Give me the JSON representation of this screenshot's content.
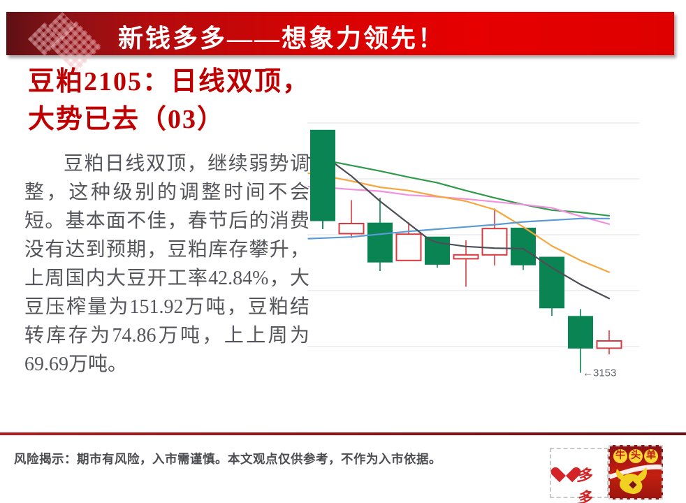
{
  "banner": {
    "title": "新钱多多——想象力领先！"
  },
  "title": {
    "line1": "豆粕2105：日线双顶，",
    "line2": "大势已去（03）"
  },
  "body": {
    "paragraph": "豆粕日线双顶，继续弱势调整，这种级别的调整时间不会短。基本面不佳，春节后的消费没有达到预期，豆粕库存攀升，上周国内大豆开工率42.84%，大豆压榨量为151.92万吨，豆粕结转库存为74.86万吨，上上周为69.69万吨。"
  },
  "footer": {
    "disclaimer": "风险揭示：期市有风险，入市需谨慎。本文观点仅供参考，不作为入市依据。"
  },
  "logos": {
    "qianduoduo": {
      "heart_char": "钱",
      "suffix": "多多"
    },
    "niutoudan": {
      "chars": [
        "牛",
        "头",
        "单"
      ]
    }
  },
  "chart_data": {
    "type": "candlestick",
    "title": "",
    "ylim": [
      3100,
      3650
    ],
    "grid": true,
    "gridline_prices": [
      3600,
      3500,
      3400,
      3300,
      3200
    ],
    "colors": {
      "up": "#d93a3f",
      "down": "#0b8453",
      "grid": "#e7e8ec"
    },
    "candles": [
      {
        "open": 3587,
        "high": 3587,
        "low": 3410,
        "close": 3425,
        "dir": "down"
      },
      {
        "open": 3402,
        "high": 3462,
        "low": 3394,
        "close": 3420,
        "dir": "up"
      },
      {
        "open": 3421,
        "high": 3466,
        "low": 3335,
        "close": 3351,
        "dir": "down"
      },
      {
        "open": 3354,
        "high": 3422,
        "low": 3354,
        "close": 3401,
        "dir": "up"
      },
      {
        "open": 3396,
        "high": 3396,
        "low": 3341,
        "close": 3347,
        "dir": "down"
      },
      {
        "open": 3357,
        "high": 3390,
        "low": 3307,
        "close": 3364,
        "dir": "up"
      },
      {
        "open": 3364,
        "high": 3447,
        "low": 3345,
        "close": 3411,
        "dir": "up"
      },
      {
        "open": 3412,
        "high": 3412,
        "low": 3337,
        "close": 3346,
        "dir": "down"
      },
      {
        "open": 3360,
        "high": 3360,
        "low": 3255,
        "close": 3269,
        "dir": "down"
      },
      {
        "open": 3254,
        "high": 3267,
        "low": 3153,
        "close": 3197,
        "dir": "down"
      },
      {
        "open": 3197,
        "high": 3229,
        "low": 3186,
        "close": 3210,
        "dir": "up"
      }
    ],
    "series": [
      {
        "name": "green",
        "color": "#2f9a4b",
        "points": [
          [
            -0.5,
            3538
          ],
          [
            0,
            3534
          ],
          [
            1,
            3524
          ],
          [
            2,
            3514
          ],
          [
            3,
            3503
          ],
          [
            4,
            3493
          ],
          [
            5,
            3479
          ],
          [
            6,
            3466
          ],
          [
            7,
            3454
          ],
          [
            8,
            3444
          ],
          [
            9,
            3440
          ],
          [
            10,
            3434
          ]
        ]
      },
      {
        "name": "pink",
        "color": "#f290dd",
        "points": [
          [
            -0.5,
            3486
          ],
          [
            0,
            3485
          ],
          [
            1,
            3481
          ],
          [
            2,
            3478
          ],
          [
            3,
            3471
          ],
          [
            4,
            3468
          ],
          [
            5,
            3464
          ],
          [
            6,
            3459
          ],
          [
            7,
            3454
          ],
          [
            8,
            3448
          ],
          [
            9,
            3433
          ],
          [
            10,
            3419
          ]
        ]
      },
      {
        "name": "orange",
        "color": "#f6a63b",
        "points": [
          [
            -0.5,
            3510
          ],
          [
            0,
            3506
          ],
          [
            1,
            3496
          ],
          [
            2,
            3485
          ],
          [
            3,
            3479
          ],
          [
            4,
            3469
          ],
          [
            5,
            3460
          ],
          [
            6,
            3445
          ],
          [
            7,
            3414
          ],
          [
            8,
            3380
          ],
          [
            9,
            3354
          ],
          [
            10,
            3333
          ]
        ]
      },
      {
        "name": "blue",
        "color": "#5b9bd5",
        "points": [
          [
            -0.5,
            3393
          ],
          [
            0,
            3394
          ],
          [
            1,
            3396
          ],
          [
            2,
            3401
          ],
          [
            3,
            3406
          ],
          [
            4,
            3410
          ],
          [
            5,
            3414
          ],
          [
            6,
            3418
          ],
          [
            7,
            3423
          ],
          [
            8,
            3426
          ],
          [
            9,
            3429
          ],
          [
            10,
            3429
          ]
        ]
      },
      {
        "name": "black",
        "color": "#4c4e56",
        "points": [
          [
            -0.5,
            3538
          ],
          [
            0,
            3532
          ],
          [
            0.4,
            3528
          ],
          [
            1,
            3505
          ],
          [
            2,
            3460
          ],
          [
            3,
            3420
          ],
          [
            3.7,
            3392
          ],
          [
            4,
            3386
          ],
          [
            5,
            3379
          ],
          [
            6,
            3376
          ],
          [
            7,
            3375
          ],
          [
            8,
            3341
          ],
          [
            9,
            3311
          ],
          [
            10,
            3286
          ]
        ]
      }
    ],
    "price_annotation": {
      "text": "←3153",
      "value": 3153,
      "candle_index": 9
    }
  }
}
